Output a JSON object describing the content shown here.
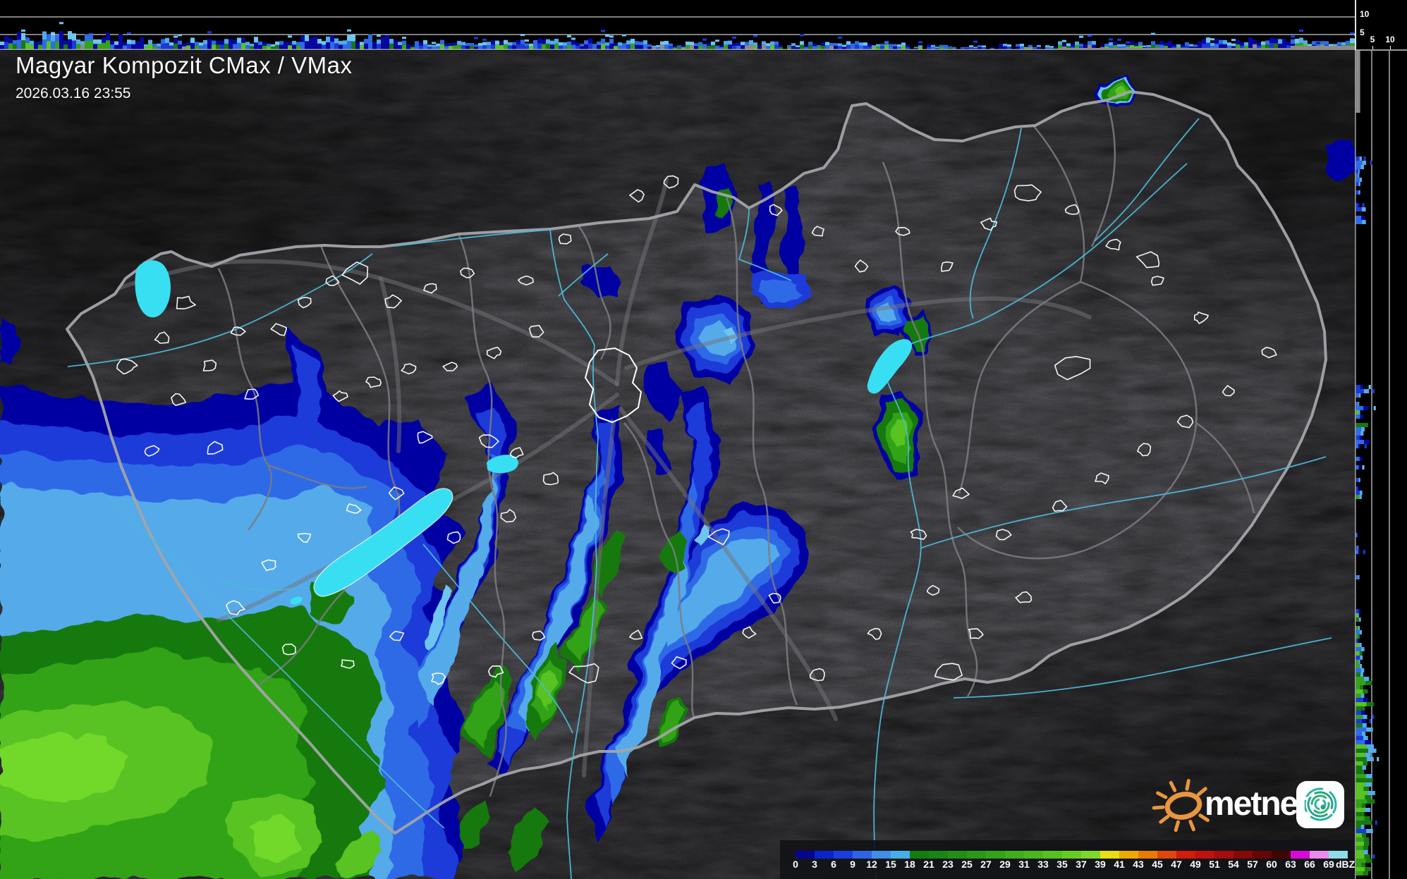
{
  "header": {
    "title": "Magyar Kompozit CMax / VMax",
    "timestamp": "2026.03.16 23:55"
  },
  "axes": {
    "top": [
      "10",
      "5"
    ],
    "right": [
      "5",
      "10"
    ]
  },
  "colorbar": {
    "unit": "dBZ",
    "tick_labels": [
      "0",
      "3",
      "6",
      "9",
      "12",
      "15",
      "18",
      "21",
      "23",
      "25",
      "27",
      "29",
      "31",
      "33",
      "35",
      "37",
      "39",
      "41",
      "43",
      "45",
      "47",
      "49",
      "51",
      "54",
      "57",
      "60",
      "63",
      "66",
      "69"
    ],
    "cell_colors": [
      "#050591",
      "#0a24cc",
      "#1b3cde",
      "#2f63e6",
      "#3f8ee8",
      "#45aee8",
      "#117d11",
      "#188613",
      "#209015",
      "#299a16",
      "#33a418",
      "#3eae19",
      "#4ab81b",
      "#57c21e",
      "#66cc22",
      "#7ed72a",
      "#e8de12",
      "#efa907",
      "#e97b05",
      "#e1460b",
      "#d31b0e",
      "#c11010",
      "#a60c0c",
      "#870808",
      "#650505",
      "#420303",
      "#d90ad9",
      "#ec8bec",
      "#8edce8"
    ]
  },
  "branding": {
    "logo_text": "metnet"
  },
  "palette": {
    "navy": "#0606A2",
    "blue": "#1B3AD8",
    "mid_blue": "#2E6BE6",
    "light_blue": "#55AAEA",
    "sky": "#6EC6F0",
    "dark_green": "#17790F",
    "green": "#33A317",
    "bright_green": "#58C322",
    "vivid_green": "#72D82B",
    "lake": "#38DFF2",
    "river": "#4DB8D8",
    "gray_echo": "#8A8A8A"
  }
}
